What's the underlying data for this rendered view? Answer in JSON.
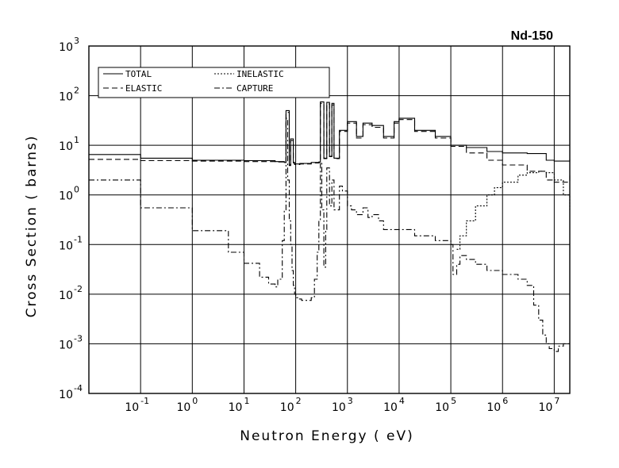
{
  "chart_data": {
    "type": "line",
    "title": "Nd-150",
    "xlabel": "Neutron Energy ( eV)",
    "ylabel": "Cross Section ( barns)",
    "x_scale": "log",
    "y_scale": "log",
    "xlim": [
      0.01,
      20000000
    ],
    "ylim": [
      0.0001,
      1000
    ],
    "grid": true,
    "legend_position": "top-left",
    "x_ticks": [
      {
        "base": "10",
        "exp": "-1",
        "value": 0.1
      },
      {
        "base": "10",
        "exp": "0",
        "value": 1
      },
      {
        "base": "10",
        "exp": "1",
        "value": 10
      },
      {
        "base": "10",
        "exp": "2",
        "value": 100
      },
      {
        "base": "10",
        "exp": "3",
        "value": 1000
      },
      {
        "base": "10",
        "exp": "4",
        "value": 10000
      },
      {
        "base": "10",
        "exp": "5",
        "value": 100000
      },
      {
        "base": "10",
        "exp": "6",
        "value": 1000000
      },
      {
        "base": "10",
        "exp": "7",
        "value": 10000000
      }
    ],
    "y_ticks": [
      {
        "base": "10",
        "exp": "3",
        "value": 1000
      },
      {
        "base": "10",
        "exp": "2",
        "value": 100
      },
      {
        "base": "10",
        "exp": "1",
        "value": 10
      },
      {
        "base": "10",
        "exp": "0",
        "value": 1
      },
      {
        "base": "10",
        "exp": "-1",
        "value": 0.1
      },
      {
        "base": "10",
        "exp": "-2",
        "value": 0.01
      },
      {
        "base": "10",
        "exp": "-3",
        "value": 0.001
      },
      {
        "base": "10",
        "exp": "-4",
        "value": 0.0001
      }
    ],
    "series": [
      {
        "name": "TOTAL",
        "dash": "solid",
        "x": [
          0.01,
          0.1,
          1,
          10,
          40,
          60,
          65,
          75,
          80,
          90,
          95,
          120,
          200,
          280,
          300,
          350,
          400,
          450,
          500,
          550,
          700,
          1000,
          1500,
          2000,
          3000,
          5000,
          8000,
          10000,
          20000,
          50000,
          100000,
          200000,
          500000,
          1000000,
          3000000,
          7000000,
          10000000,
          20000000
        ],
        "y": [
          6.5,
          5.5,
          5.0,
          4.9,
          4.7,
          4.5,
          50,
          4.0,
          13.5,
          4.5,
          4.2,
          4.3,
          4.5,
          4.6,
          75,
          5.5,
          73,
          6.0,
          70,
          5.5,
          20,
          30,
          15,
          28,
          25,
          15,
          30,
          35,
          20,
          15,
          10,
          9.0,
          7.5,
          7.0,
          6.8,
          5.0,
          4.8,
          5.2
        ]
      },
      {
        "name": "ELASTIC",
        "dash": "long-dash",
        "x": [
          0.01,
          0.1,
          1,
          10,
          40,
          60,
          65,
          75,
          80,
          90,
          95,
          120,
          200,
          280,
          300,
          350,
          400,
          450,
          500,
          550,
          700,
          1000,
          1500,
          2000,
          3000,
          5000,
          8000,
          10000,
          20000,
          50000,
          100000,
          200000,
          500000,
          1000000,
          3000000,
          7000000,
          10000000,
          20000000
        ],
        "y": [
          5.2,
          4.9,
          4.8,
          4.7,
          4.6,
          4.4,
          46,
          3.9,
          12.5,
          4.4,
          4.1,
          4.2,
          4.4,
          4.5,
          70,
          5.4,
          68,
          5.9,
          65,
          5.4,
          19,
          28,
          14,
          26,
          23,
          14,
          28,
          33,
          19,
          14,
          9.5,
          7.0,
          5.0,
          4.0,
          3.0,
          2.0,
          1.8,
          2.5
        ]
      },
      {
        "name": "INELASTIC",
        "dash": "short-dash",
        "x": [
          130000,
          150000,
          200000,
          300000,
          500000,
          700000,
          1000000,
          2000000,
          3000000,
          5000000,
          7000000,
          10000000,
          15000000,
          20000000
        ],
        "y": [
          0.08,
          0.15,
          0.3,
          0.6,
          1.0,
          1.4,
          1.8,
          2.5,
          2.8,
          3.0,
          2.8,
          2.0,
          1.0,
          0.5
        ]
      },
      {
        "name": "CAPTURE",
        "dash": "dash-dot",
        "x": [
          0.01,
          0.1,
          1,
          5,
          10,
          20,
          30,
          40,
          45,
          55,
          60,
          65,
          70,
          75,
          80,
          85,
          90,
          95,
          100,
          110,
          130,
          160,
          200,
          230,
          260,
          280,
          300,
          320,
          350,
          380,
          400,
          450,
          500,
          550,
          600,
          700,
          800,
          1000,
          1200,
          1500,
          2000,
          2500,
          3000,
          4000,
          5000,
          7000,
          10000,
          20000,
          50000,
          100000,
          110000,
          130000,
          150000,
          200000,
          300000,
          500000,
          1000000,
          2000000,
          3000000,
          4000000,
          5000000,
          6000000,
          7000000,
          8000000,
          10000000,
          12000000,
          15000000,
          20000000
        ],
        "y": [
          2.0,
          0.55,
          0.19,
          0.07,
          0.042,
          0.022,
          0.016,
          0.014,
          0.02,
          0.12,
          0.5,
          35,
          2.0,
          0.3,
          0.1,
          0.03,
          0.015,
          0.01,
          0.0085,
          0.008,
          0.0075,
          0.0075,
          0.0085,
          0.02,
          0.07,
          0.3,
          4.5,
          0.5,
          0.035,
          0.2,
          3.5,
          0.6,
          2.0,
          0.5,
          0.5,
          1.5,
          1.2,
          0.6,
          0.5,
          0.4,
          0.55,
          0.35,
          0.4,
          0.3,
          0.2,
          0.2,
          0.2,
          0.15,
          0.12,
          0.1,
          0.025,
          0.04,
          0.06,
          0.05,
          0.04,
          0.03,
          0.025,
          0.02,
          0.015,
          0.006,
          0.003,
          0.0015,
          0.001,
          0.0008,
          0.0007,
          0.0009,
          0.001,
          0.001
        ]
      }
    ]
  }
}
